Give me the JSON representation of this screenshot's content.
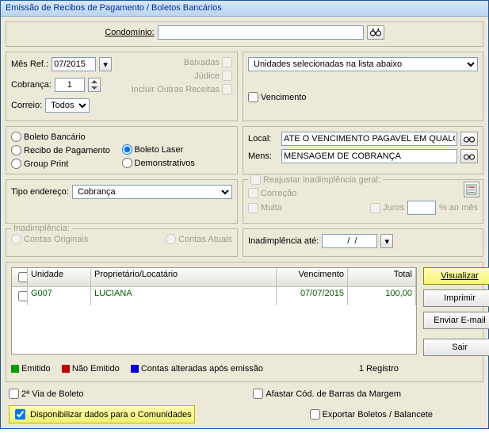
{
  "title": "Emissão de Recibos de Pagamento / Boletos Bancários",
  "topbar": {
    "condominio_label": "Condomínio:"
  },
  "params": {
    "mes_ref_label": "Mês Ref.:",
    "mes_ref": "07/2015",
    "cobranca_label": "Cobrança:",
    "cobranca": "1",
    "correio_label": "Correio:",
    "correio": "Todos",
    "baixadas": "Baixadas",
    "judice": "Júdice",
    "incluir_outras": "Incluir Outras Receitas"
  },
  "unidades_sel": {
    "value": "Unidades selecionadas na lista abaixo",
    "vencimento": "Vencimento"
  },
  "tipo_doc": {
    "boleto_bancario": "Boleto Bancário",
    "recibo_pagamento": "Recibo de Pagamento",
    "group_print": "Group Print",
    "boleto_laser": "Boleto Laser",
    "demonstrativos": "Demonstrativos"
  },
  "local_mens": {
    "local_label": "Local:",
    "local": "ATE O VENCIMENTO PAGAVEL EM QUALQUER BANCO",
    "mens_label": "Mens:",
    "mens": "MENSAGEM DE COBRANÇA"
  },
  "tipo_endereco": {
    "label": "Tipo endereço:",
    "value": "Cobrança"
  },
  "reajustar": {
    "title": "Reajustar inadimplência geral:",
    "correcao": "Correção",
    "multa": "Multa",
    "juros": "Juros",
    "pct_mes": "% ao mês"
  },
  "inadimplencia": {
    "label": "Inadimplência:",
    "contas_originais": "Contas Originais",
    "contas_atuais": "Contas Atuais",
    "ate_label": "Inadimplência até:",
    "ate_value": "  /  /"
  },
  "table": {
    "cols": [
      "",
      "Unidade",
      "Proprietário/Locatário",
      "Vencimento",
      "Total"
    ],
    "widths": [
      "20px",
      "80px",
      "234px",
      "90px",
      "86px"
    ],
    "rows": [
      {
        "unidade": "G007",
        "prop": "LUCIANA",
        "venc": "07/07/2015",
        "total": "100,00",
        "color": "#006000"
      }
    ]
  },
  "buttons": {
    "visualizar": "Visualizar",
    "imprimir": "Imprimir",
    "enviar": "Enviar E-mail",
    "sair": "Sair"
  },
  "legend": {
    "emitido": "Emitido",
    "nao_emitido": "Não Emitido",
    "alteradas": "Contas alteradas após emissão",
    "registros": "1 Registro"
  },
  "footer": {
    "segunda_via": "2ª Via de Boleto",
    "afastar": "Afastar Cód. de Barras da Margem",
    "disponibilizar": "Disponibilizar dados para o Comunidades",
    "exportar": "Exportar Boletos / Balancete"
  }
}
